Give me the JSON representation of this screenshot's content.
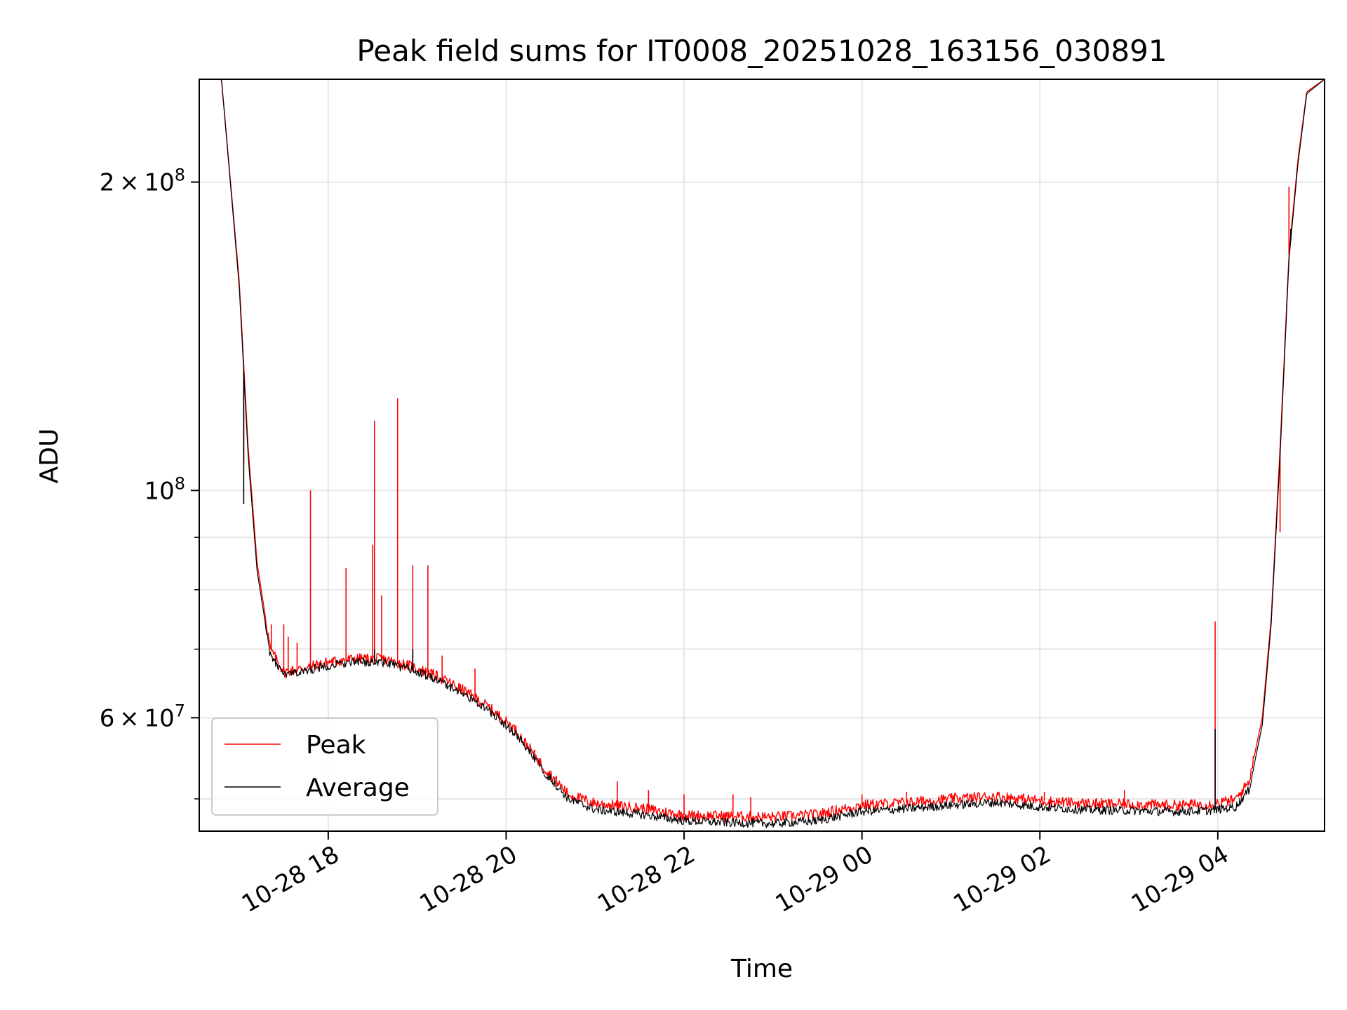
{
  "chart_data": {
    "type": "line",
    "title": "Peak field sums for IT0008_20251028_163156_030891",
    "xlabel": "Time",
    "ylabel": "ADU",
    "yscale": "log",
    "ylim": [
      46500000,
      252000000
    ],
    "xlim_hours": [
      16.55,
      29.2
    ],
    "grid": true,
    "legend_position": "lower-left",
    "x_ticks": [
      {
        "value": 18,
        "label": "10-28 18"
      },
      {
        "value": 20,
        "label": "10-28 20"
      },
      {
        "value": 22,
        "label": "10-28 22"
      },
      {
        "value": 24,
        "label": "10-29 00"
      },
      {
        "value": 26,
        "label": "10-29 02"
      },
      {
        "value": 28,
        "label": "10-29 04"
      }
    ],
    "y_ticks": [
      {
        "value": 200000000,
        "mant": "2",
        "exp": "8"
      },
      {
        "value": 100000000,
        "mant": "",
        "exp": "8"
      },
      {
        "value": 60000000,
        "mant": "6",
        "exp": "7"
      }
    ],
    "y_minor_ticks": [
      50000000,
      70000000,
      80000000,
      90000000
    ],
    "series": [
      {
        "name": "Peak",
        "color": "#ff0000",
        "baseline": [
          [
            16.55,
            252000000
          ],
          [
            16.8,
            252000000
          ],
          [
            17.0,
            160000000
          ],
          [
            17.1,
            110000000
          ],
          [
            17.2,
            85000000
          ],
          [
            17.35,
            70000000
          ],
          [
            17.5,
            66500000
          ],
          [
            17.7,
            67000000
          ],
          [
            18.0,
            68000000
          ],
          [
            18.3,
            68500000
          ],
          [
            18.6,
            68500000
          ],
          [
            18.9,
            67500000
          ],
          [
            19.2,
            66000000
          ],
          [
            19.5,
            64000000
          ],
          [
            19.8,
            61500000
          ],
          [
            20.1,
            58500000
          ],
          [
            20.4,
            54000000
          ],
          [
            20.7,
            50500000
          ],
          [
            21.0,
            49500000
          ],
          [
            21.5,
            49000000
          ],
          [
            22.0,
            48200000
          ],
          [
            22.5,
            48100000
          ],
          [
            23.0,
            48000000
          ],
          [
            23.5,
            48300000
          ],
          [
            24.0,
            49300000
          ],
          [
            24.5,
            49600000
          ],
          [
            25.0,
            50000000
          ],
          [
            25.5,
            50300000
          ],
          [
            26.0,
            49800000
          ],
          [
            26.5,
            49500000
          ],
          [
            27.0,
            49400000
          ],
          [
            27.5,
            49300000
          ],
          [
            27.9,
            49400000
          ],
          [
            28.2,
            49900000
          ],
          [
            28.35,
            52000000
          ],
          [
            28.5,
            60000000
          ],
          [
            28.6,
            75000000
          ],
          [
            28.7,
            110000000
          ],
          [
            28.8,
            170000000
          ],
          [
            28.9,
            210000000
          ],
          [
            29.0,
            245000000
          ],
          [
            29.2,
            252000000
          ]
        ],
        "spikes": [
          [
            17.05,
            106000000
          ],
          [
            17.36,
            74000000
          ],
          [
            17.5,
            74000000
          ],
          [
            17.55,
            72000000
          ],
          [
            17.65,
            71000000
          ],
          [
            17.8,
            100000000
          ],
          [
            18.2,
            84000000
          ],
          [
            18.5,
            88500000
          ],
          [
            18.52,
            117000000
          ],
          [
            18.6,
            79000000
          ],
          [
            18.78,
            123000000
          ],
          [
            18.95,
            84500000
          ],
          [
            19.12,
            84500000
          ],
          [
            19.28,
            69000000
          ],
          [
            19.65,
            67000000
          ],
          [
            21.25,
            52000000
          ],
          [
            21.6,
            51000000
          ],
          [
            22.0,
            50500000
          ],
          [
            22.55,
            50500000
          ],
          [
            22.75,
            50200000
          ],
          [
            24.0,
            50500000
          ],
          [
            24.5,
            50800000
          ],
          [
            25.3,
            50600000
          ],
          [
            26.05,
            50800000
          ],
          [
            26.95,
            51000000
          ],
          [
            27.97,
            74500000
          ],
          [
            28.7,
            91000000
          ],
          [
            28.8,
            198000000
          ]
        ]
      },
      {
        "name": "Average",
        "color": "#000000",
        "baseline": [
          [
            16.55,
            252000000
          ],
          [
            16.8,
            252000000
          ],
          [
            17.0,
            158000000
          ],
          [
            17.1,
            108000000
          ],
          [
            17.2,
            83500000
          ],
          [
            17.35,
            69000000
          ],
          [
            17.5,
            66000000
          ],
          [
            17.7,
            66500000
          ],
          [
            18.0,
            67500000
          ],
          [
            18.3,
            68000000
          ],
          [
            18.6,
            68000000
          ],
          [
            18.9,
            67000000
          ],
          [
            19.2,
            65500000
          ],
          [
            19.5,
            63500000
          ],
          [
            19.8,
            61000000
          ],
          [
            20.1,
            58000000
          ],
          [
            20.4,
            53500000
          ],
          [
            20.7,
            50000000
          ],
          [
            21.0,
            48800000
          ],
          [
            21.5,
            48300000
          ],
          [
            22.0,
            47600000
          ],
          [
            22.5,
            47400000
          ],
          [
            23.0,
            47300000
          ],
          [
            23.5,
            47600000
          ],
          [
            24.0,
            48600000
          ],
          [
            24.5,
            48900000
          ],
          [
            25.0,
            49300000
          ],
          [
            25.5,
            49600000
          ],
          [
            26.0,
            49100000
          ],
          [
            26.5,
            48800000
          ],
          [
            27.0,
            48700000
          ],
          [
            27.5,
            48600000
          ],
          [
            27.9,
            48700000
          ],
          [
            28.2,
            49100000
          ],
          [
            28.35,
            51000000
          ],
          [
            28.5,
            59000000
          ],
          [
            28.6,
            74000000
          ],
          [
            28.7,
            108000000
          ],
          [
            28.8,
            168000000
          ],
          [
            28.9,
            208000000
          ],
          [
            29.0,
            244000000
          ],
          [
            29.2,
            252000000
          ]
        ],
        "spikes": [
          [
            17.05,
            97000000
          ],
          [
            18.52,
            70000000
          ],
          [
            18.95,
            70000000
          ],
          [
            27.97,
            58500000
          ],
          [
            28.82,
            180000000
          ]
        ]
      }
    ]
  }
}
